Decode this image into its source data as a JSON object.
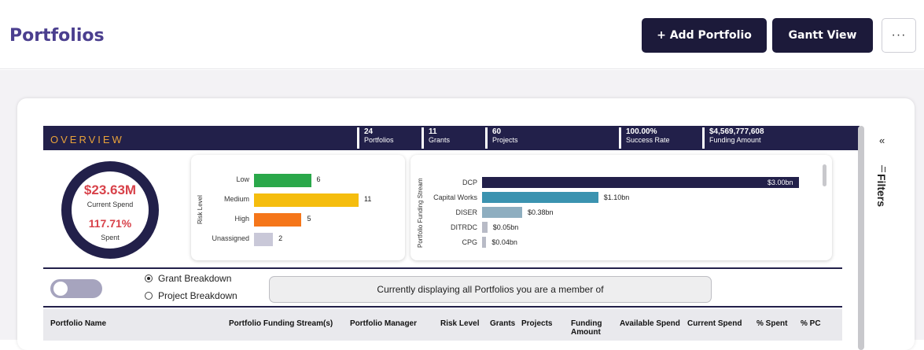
{
  "header": {
    "title": "Portfolios",
    "add_button": "+ Add Portfolio",
    "gantt_button": "Gantt View",
    "more_button": "···"
  },
  "overview": {
    "title": "OVERVIEW",
    "kpis": [
      {
        "value": "24",
        "label": "Portfolios"
      },
      {
        "value": "11",
        "label": "Grants"
      },
      {
        "value": "60",
        "label": "Projects"
      },
      {
        "value": "100.00%",
        "label": "Success Rate"
      },
      {
        "value": "$4,569,777,608",
        "label": "Funding Amount"
      }
    ],
    "spend": {
      "value": "$23.63M",
      "value_label": "Current Spend",
      "percent": "117.71%",
      "percent_label": "Spent"
    }
  },
  "chart_data": [
    {
      "type": "bar",
      "orientation": "horizontal",
      "ylabel": "Risk Level",
      "categories": [
        "Low",
        "Medium",
        "High",
        "Unassigned"
      ],
      "values": [
        6,
        11,
        5,
        2
      ],
      "labels": [
        "6",
        "11",
        "5",
        "2"
      ],
      "colors": [
        "#2aa84a",
        "#f5bd0e",
        "#f5761a",
        "#c9c8d8"
      ],
      "xlim": [
        0,
        11
      ]
    },
    {
      "type": "bar",
      "orientation": "horizontal",
      "ylabel": "Portfolio Funding Stream",
      "categories": [
        "DCP",
        "Capital Works",
        "DISER",
        "DITRDC",
        "CPG"
      ],
      "values": [
        3.0,
        1.1,
        0.38,
        0.05,
        0.04
      ],
      "labels": [
        "$3.00bn",
        "$1.10bn",
        "$0.38bn",
        "$0.05bn",
        "$0.04bn"
      ],
      "colors": [
        "#22204a",
        "#3b93b0",
        "#8eaec0",
        "#b8bbc6",
        "#b8bbc6"
      ],
      "xlim": [
        0,
        3.0
      ]
    }
  ],
  "controls": {
    "radio_grant": "Grant Breakdown",
    "radio_project": "Project Breakdown",
    "selected": "Grant Breakdown",
    "message": "Currently displaying all Portfolios you are a member of"
  },
  "table": {
    "columns": [
      "Portfolio Name",
      "Portfolio Funding Stream(s)",
      "Portfolio Manager",
      "Risk Level",
      "Grants",
      "Projects",
      "Funding Amount",
      "Available Spend",
      "Current Spend",
      "% Spent",
      "% PC"
    ]
  },
  "sidebar": {
    "collapse": "«",
    "filters_label": "Filters"
  }
}
